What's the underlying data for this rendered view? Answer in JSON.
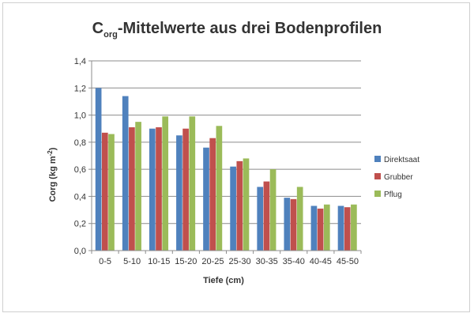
{
  "chart_data": {
    "type": "bar",
    "title_main": "C",
    "title_sub": "org",
    "title_rest": "-Mittelwerte aus drei Bodenprofilen",
    "xlabel": "Tiefe (cm)",
    "ylabel_main": "Corg  (kg m",
    "ylabel_sup": "-2",
    "ylabel_end": ")",
    "ylim": [
      0,
      1.4
    ],
    "ytick_values": [
      0,
      0.2,
      0.4,
      0.6,
      0.8,
      1.0,
      1.2,
      1.4
    ],
    "ytick_labels": [
      "0,0",
      "0,2",
      "0,4",
      "0,6",
      "0,8",
      "1,0",
      "1,2",
      "1,4"
    ],
    "grid": true,
    "legend_position": "right",
    "categories": [
      "0-5",
      "5-10",
      "10-15",
      "15-20",
      "20-25",
      "25-30",
      "30-35",
      "35-40",
      "40-45",
      "45-50"
    ],
    "series": [
      {
        "name": "Direktsaat",
        "color": "#4f81bd",
        "values": [
          1.2,
          1.14,
          0.9,
          0.85,
          0.76,
          0.62,
          0.47,
          0.39,
          0.33,
          0.33
        ]
      },
      {
        "name": "Grubber",
        "color": "#c0504d",
        "values": [
          0.87,
          0.91,
          0.91,
          0.9,
          0.83,
          0.66,
          0.51,
          0.38,
          0.31,
          0.32
        ]
      },
      {
        "name": "Pflug",
        "color": "#9bbb59",
        "values": [
          0.86,
          0.95,
          0.99,
          0.99,
          0.92,
          0.68,
          0.6,
          0.47,
          0.34,
          0.34
        ]
      }
    ]
  }
}
